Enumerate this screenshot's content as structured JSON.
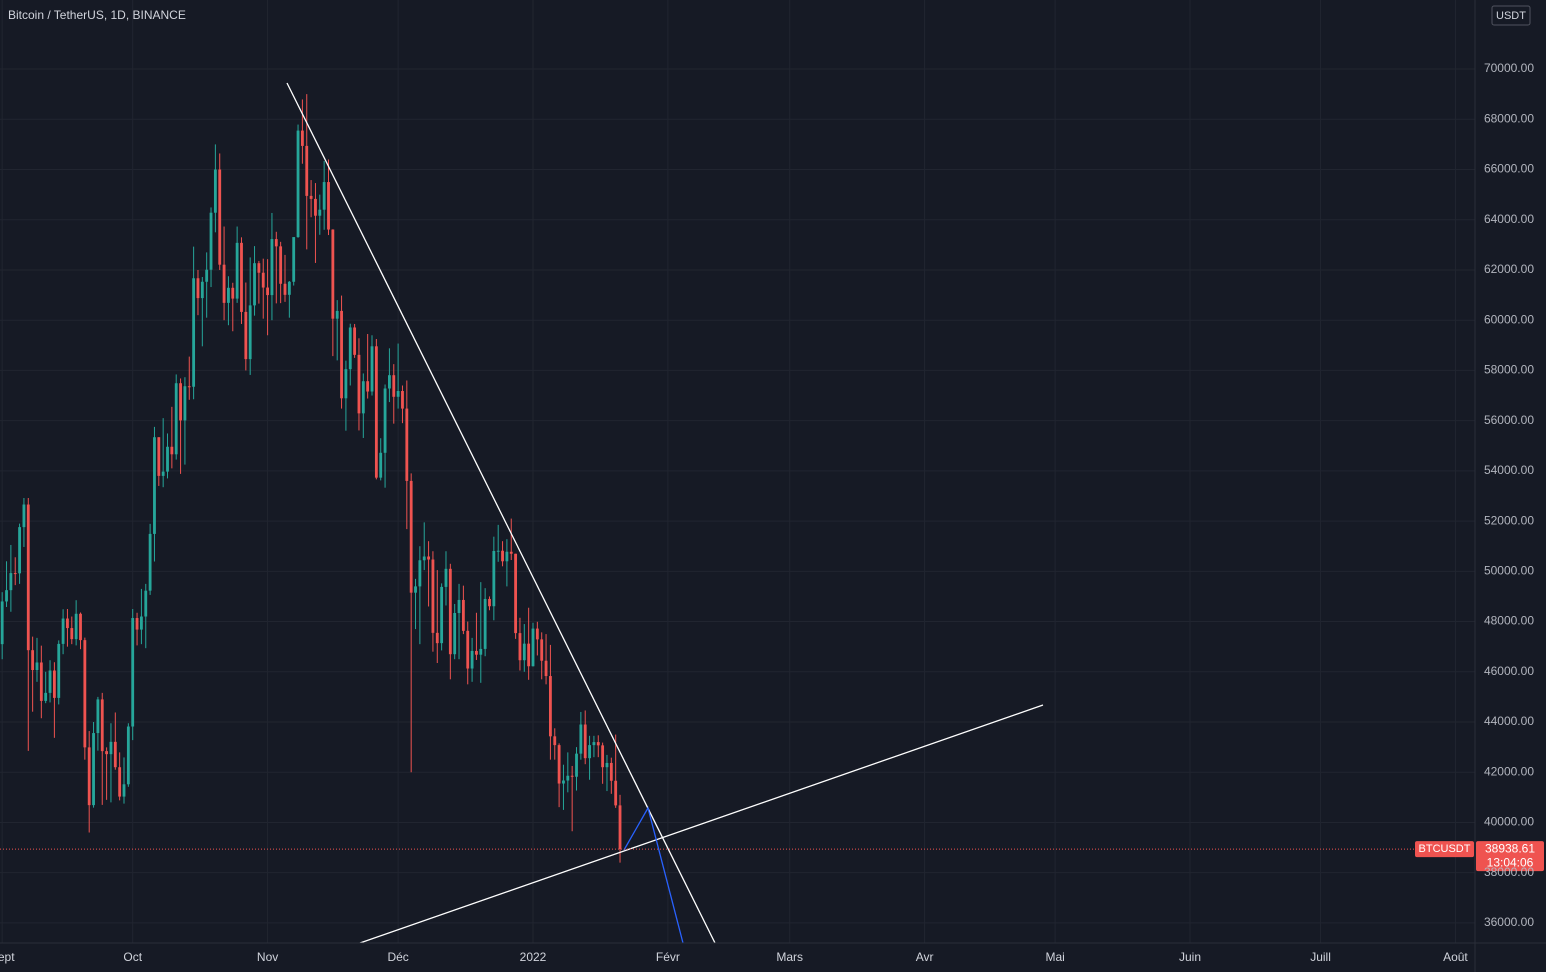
{
  "chart_data": {
    "type": "candlestick",
    "title": "Bitcoin / TetherUS, 1D, BINANCE",
    "currency": "USDT",
    "symbol_tag": "BTCUSDT",
    "countdown": "13:04:06",
    "up_color": "#26a69a",
    "down_color": "#ef5350",
    "open": [
      47100,
      48800,
      49250,
      49930,
      49920,
      51760,
      52660,
      46860,
      46070,
      46370,
      44840,
      45160,
      46050,
      44960,
      47110,
      48120,
      47740,
      47300,
      48310,
      47260,
      42990,
      40690,
      43560,
      44900,
      42840,
      42720,
      43210,
      42200,
      41030,
      41520,
      43820,
      48140,
      47680,
      48200,
      49230,
      51490,
      55340,
      53800,
      53970,
      54960,
      54660,
      57490,
      56010,
      57370,
      57350,
      61670,
      60880,
      61530,
      62010,
      64280,
      66000,
      62210,
      60690,
      61290,
      60860,
      63080,
      60330,
      58450,
      60590,
      62270,
      61890,
      61300,
      61000,
      63230,
      62940,
      61450,
      61010,
      61530,
      63310,
      67550,
      66940,
      64950,
      64830,
      64160,
      64400,
      65500,
      63610,
      60060,
      60370,
      56890,
      58050,
      59710,
      58620,
      56290,
      57570,
      57160,
      58960,
      53730,
      54720,
      57280,
      57810,
      56950,
      57180,
      56480,
      53600,
      49150,
      49400,
      50440,
      50590,
      50470,
      47550,
      47140,
      49380,
      50100,
      46700,
      48340,
      48860,
      47630,
      46130,
      46830,
      46680,
      46910,
      48900,
      48610,
      50810,
      50820,
      50400,
      50780,
      50700,
      47540,
      46460,
      47120,
      46220,
      47720,
      47290,
      46440,
      45830,
      43430,
      43080,
      41550,
      41670,
      41860,
      41820,
      42740,
      43900,
      42560,
      43080,
      43200,
      43070,
      42200,
      42370,
      41660,
      40680
    ],
    "high": [
      49170,
      50400,
      51050,
      50560,
      51900,
      52920,
      52920,
      47400,
      47350,
      47040,
      46000,
      46460,
      46380,
      47250,
      48490,
      48500,
      48200,
      48850,
      48360,
      47360,
      43640,
      44000,
      45000,
      45160,
      42990,
      43950,
      44380,
      42790,
      42590,
      43950,
      48500,
      48350,
      49300,
      49500,
      51890,
      55750,
      55340,
      56100,
      55490,
      56550,
      57840,
      57680,
      57730,
      58550,
      62930,
      62000,
      61720,
      62700,
      64490,
      67000,
      66640,
      63730,
      61750,
      61490,
      63730,
      63300,
      61500,
      62500,
      62950,
      62360,
      62450,
      62430,
      64270,
      63520,
      63120,
      62600,
      61560,
      63290,
      67790,
      68790,
      69000,
      65580,
      65460,
      65000,
      66340,
      66400,
      63620,
      60800,
      60980,
      58390,
      59860,
      59850,
      59280,
      57880,
      59450,
      59400,
      59250,
      55300,
      57440,
      58880,
      58250,
      59070,
      57400,
      57600,
      53900,
      49700,
      51000,
      51950,
      51200,
      50800,
      50050,
      49520,
      50800,
      50300,
      48700,
      49500,
      49430,
      48000,
      47350,
      48350,
      49570,
      49330,
      49000,
      51380,
      51850,
      51200,
      51280,
      52100,
      50700,
      48150,
      47900,
      48550,
      47950,
      47990,
      47570,
      47500,
      47070,
      43750,
      43150,
      42300,
      42790,
      42250,
      43000,
      44400,
      44460,
      43450,
      43450,
      43470,
      43180,
      42690,
      42580,
      43500,
      41100
    ],
    "low": [
      46500,
      48580,
      48390,
      49450,
      49500,
      50970,
      42850,
      44410,
      45600,
      44150,
      44750,
      44780,
      43370,
      44700,
      46700,
      47000,
      47100,
      47050,
      46900,
      42500,
      39600,
      40590,
      42860,
      40700,
      40900,
      40800,
      42100,
      40880,
      40750,
      41420,
      43280,
      47050,
      47100,
      46940,
      49060,
      50390,
      53400,
      53350,
      53700,
      54100,
      54450,
      53880,
      54250,
      56830,
      56850,
      60200,
      58960,
      60100,
      61320,
      63500,
      62000,
      60000,
      59800,
      59560,
      60690,
      59850,
      58000,
      57820,
      60180,
      60660,
      60060,
      59400,
      60000,
      60670,
      60680,
      60730,
      60100,
      61380,
      63280,
      66230,
      62820,
      64100,
      62280,
      63400,
      63600,
      63390,
      58570,
      58400,
      56480,
      55600,
      57400,
      58500,
      55610,
      55310,
      56880,
      57000,
      53660,
      53620,
      53330,
      56740,
      55880,
      56480,
      55900,
      51680,
      42000,
      47700,
      47100,
      50050,
      48600,
      46800,
      46350,
      46850,
      48640,
      45700,
      46500,
      46500,
      47500,
      45500,
      45600,
      46470,
      45560,
      46620,
      48450,
      48050,
      50380,
      50200,
      49400,
      50450,
      47310,
      46050,
      46000,
      45680,
      46210,
      46650,
      45700,
      45500,
      42500,
      42500,
      40610,
      40500,
      41200,
      39650,
      41270,
      42500,
      42320,
      41700,
      42600,
      42600,
      41540,
      41250,
      41140,
      40580,
      38400
    ],
    "close": [
      48800,
      49250,
      49930,
      49920,
      51760,
      52660,
      46860,
      46070,
      46370,
      44840,
      45160,
      46050,
      44960,
      47110,
      48120,
      47740,
      47300,
      48310,
      47260,
      42990,
      40690,
      43560,
      44900,
      42840,
      42720,
      43210,
      42200,
      41030,
      41520,
      43820,
      48140,
      47680,
      48200,
      49230,
      51490,
      55340,
      53800,
      53970,
      54960,
      54660,
      57490,
      56010,
      57370,
      57350,
      61670,
      60880,
      61530,
      62010,
      64280,
      66000,
      62210,
      60690,
      61290,
      60860,
      63080,
      60330,
      58450,
      60590,
      62270,
      61890,
      61300,
      61000,
      63230,
      62940,
      61450,
      61010,
      61530,
      63310,
      67550,
      66940,
      64950,
      64830,
      64160,
      64400,
      65500,
      63610,
      60060,
      60370,
      56890,
      58050,
      59710,
      58620,
      56290,
      57570,
      57160,
      58960,
      53730,
      54720,
      57280,
      57810,
      56950,
      57180,
      56480,
      53600,
      49150,
      49400,
      50440,
      50590,
      50470,
      47550,
      47140,
      49380,
      50100,
      46700,
      48340,
      48860,
      47630,
      46130,
      46830,
      46680,
      46910,
      48900,
      48610,
      50810,
      50820,
      50400,
      50780,
      50700,
      47540,
      46460,
      47120,
      46220,
      47720,
      47290,
      46440,
      45830,
      43430,
      43080,
      41550,
      41670,
      41860,
      41820,
      42740,
      43900,
      42560,
      43080,
      43200,
      43070,
      42200,
      42370,
      41660,
      40680,
      38938.61
    ],
    "xlim": [
      -0.5,
      338.5
    ],
    "xticks": [
      {
        "value": 0,
        "label": "Sept"
      },
      {
        "value": 30,
        "label": "Oct"
      },
      {
        "value": 61,
        "label": "Nov"
      },
      {
        "value": 91,
        "label": "Déc"
      },
      {
        "value": 122,
        "label": "2022"
      },
      {
        "value": 153,
        "label": "Févr"
      },
      {
        "value": 181,
        "label": "Mars"
      },
      {
        "value": 212,
        "label": "Avr"
      },
      {
        "value": 242,
        "label": "Mai"
      },
      {
        "value": 273,
        "label": "Juin"
      },
      {
        "value": 303,
        "label": "Juill"
      },
      {
        "value": 334,
        "label": "Août"
      }
    ],
    "ylim": [
      35200,
      72750
    ],
    "yticks": [
      {
        "value": 36000,
        "label": "36000.00"
      },
      {
        "value": 38000,
        "label": "38000.00"
      },
      {
        "value": 40000,
        "label": "40000.00"
      },
      {
        "value": 42000,
        "label": "42000.00"
      },
      {
        "value": 44000,
        "label": "44000.00"
      },
      {
        "value": 46000,
        "label": "46000.00"
      },
      {
        "value": 48000,
        "label": "48000.00"
      },
      {
        "value": 50000,
        "label": "50000.00"
      },
      {
        "value": 52000,
        "label": "52000.00"
      },
      {
        "value": 54000,
        "label": "54000.00"
      },
      {
        "value": 56000,
        "label": "56000.00"
      },
      {
        "value": 58000,
        "label": "58000.00"
      },
      {
        "value": 60000,
        "label": "60000.00"
      },
      {
        "value": 62000,
        "label": "62000.00"
      },
      {
        "value": 64000,
        "label": "64000.00"
      },
      {
        "value": 66000,
        "label": "66000.00"
      },
      {
        "value": 68000,
        "label": "68000.00"
      },
      {
        "value": 70000,
        "label": "70000.00"
      }
    ],
    "grid": true
  }
}
